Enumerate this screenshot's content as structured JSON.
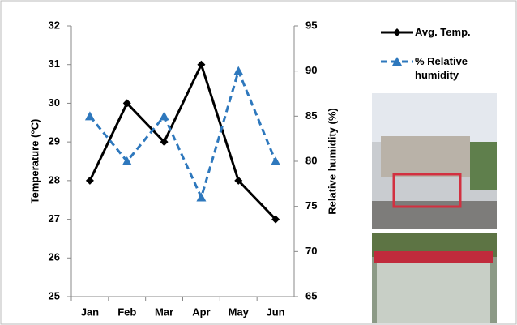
{
  "chart_data": {
    "type": "line",
    "categories": [
      "Jan",
      "Feb",
      "Mar",
      "Apr",
      "May",
      "Jun"
    ],
    "y_label": "Temperature (°C)",
    "y2_label": "Relative humidity (%)",
    "ylim": [
      25,
      32
    ],
    "yticks": [
      25,
      26,
      27,
      28,
      29,
      30,
      31,
      32
    ],
    "y2lim": [
      65,
      95
    ],
    "y2ticks": [
      65,
      70,
      75,
      80,
      85,
      90,
      95
    ],
    "legend": "right",
    "series": [
      {
        "name": "Avg. Temp.",
        "color": "#000000",
        "marker": "diamond",
        "dashed": false,
        "values": [
          28,
          30,
          29,
          31,
          28,
          27
        ]
      },
      {
        "name": "% Relative humidity",
        "color": "#2e78bd",
        "marker": "triangle",
        "dashed": true,
        "axis": "y2",
        "values": [
          85,
          80,
          85,
          76,
          90,
          80
        ]
      }
    ]
  }
}
